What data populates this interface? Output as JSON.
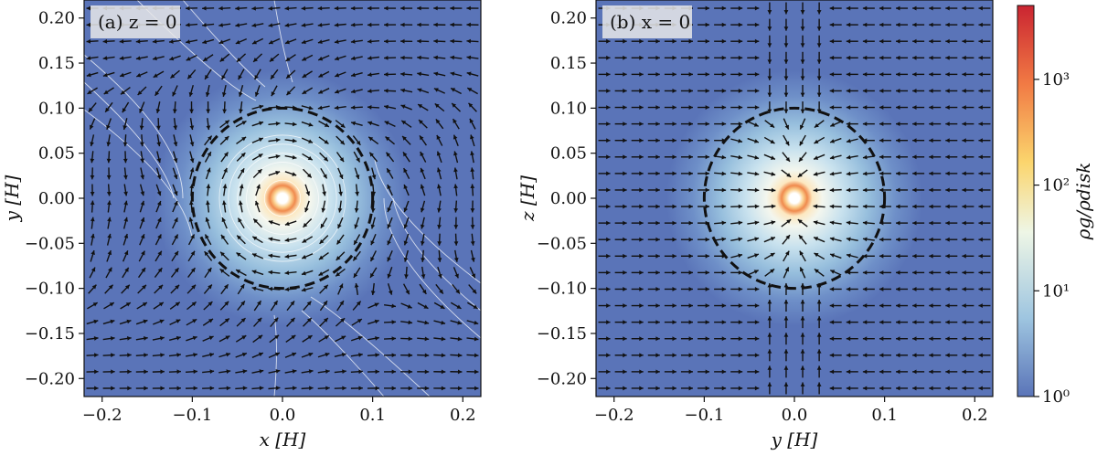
{
  "chart_data": [
    {
      "type": "vector-field",
      "panel_label": "(a) z = 0",
      "xlabel": "x [H]",
      "ylabel": "y [H]",
      "xlim": [
        -0.22,
        0.22
      ],
      "ylim": [
        -0.22,
        0.22
      ],
      "xticks": [
        -0.2,
        -0.1,
        0.0,
        0.1,
        0.2
      ],
      "xtick_labels": [
        "−0.2",
        "−0.1",
        "0.0",
        "0.1",
        "0.2"
      ],
      "yticks": [
        -0.2,
        -0.15,
        -0.1,
        -0.05,
        0.0,
        0.05,
        0.1,
        0.15,
        0.2
      ],
      "ytick_labels": [
        "−0.20",
        "−0.15",
        "−0.10",
        "−0.05",
        "0.00",
        "0.05",
        "0.10",
        "0.15",
        "0.20"
      ],
      "hill_radius": 0.1,
      "inner_hole_radius": 0.012,
      "streamlines": true,
      "flow": "horseshoe"
    },
    {
      "type": "vector-field",
      "panel_label": "(b) x = 0",
      "xlabel": "y [H]",
      "ylabel": "z [H]",
      "xlim": [
        -0.22,
        0.22
      ],
      "ylim": [
        -0.22,
        0.22
      ],
      "xticks": [
        -0.2,
        -0.1,
        0.0,
        0.1,
        0.2
      ],
      "xtick_labels": [
        "−0.2",
        "−0.1",
        "0.0",
        "0.1",
        "0.2"
      ],
      "yticks": [
        -0.2,
        -0.15,
        -0.1,
        -0.05,
        0.0,
        0.05,
        0.1,
        0.15,
        0.2
      ],
      "ytick_labels": [
        "−0.20",
        "−0.15",
        "−0.10",
        "−0.05",
        "0.00",
        "0.05",
        "0.10",
        "0.15",
        "0.20"
      ],
      "hill_radius": 0.1,
      "inner_hole_radius": 0.012,
      "streamlines": false,
      "flow": "meridional"
    }
  ],
  "colorbar": {
    "label": "ρg/ρdisk",
    "scale": "log",
    "range": [
      1,
      5000
    ],
    "ticks": [
      1,
      10,
      100,
      1000
    ],
    "tick_labels": [
      "10⁰",
      "10¹",
      "10²",
      "10³"
    ],
    "colormap": [
      "#5a74b8",
      "#9ec5e0",
      "#eef6e6",
      "#fbd56d",
      "#f17a44",
      "#ca2431"
    ]
  }
}
